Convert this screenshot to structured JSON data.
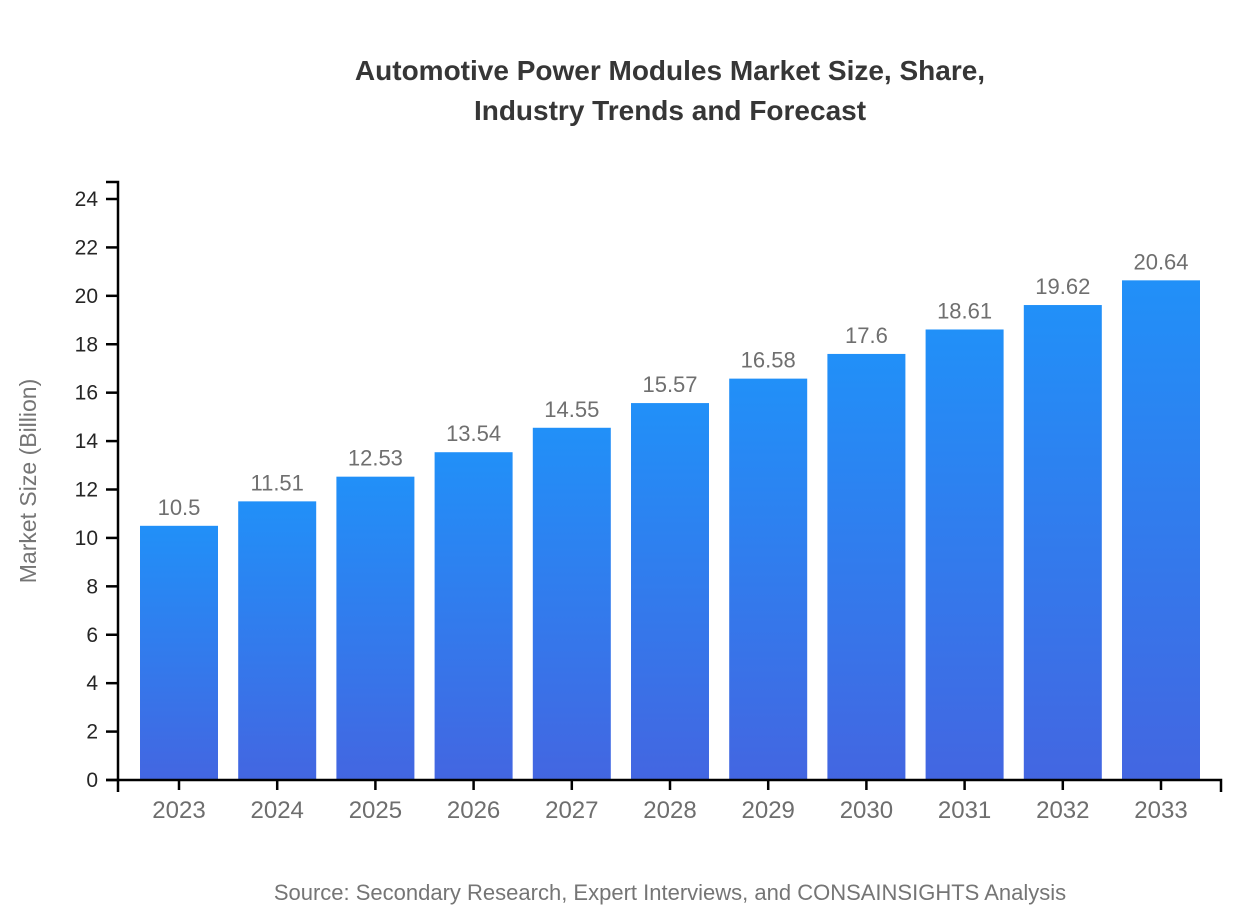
{
  "chart": {
    "title_line1": "Automotive Power Modules Market Size, Share,",
    "title_line2": "Industry Trends and Forecast",
    "ylabel": "Market Size (Billion)",
    "source": "Source: Secondary Research, Expert Interviews, and CONSAINSIGHTS Analysis"
  },
  "chart_data": {
    "type": "bar",
    "title": "Automotive Power Modules Market Size, Share, Industry Trends and Forecast",
    "categories": [
      "2023",
      "2024",
      "2025",
      "2026",
      "2027",
      "2028",
      "2029",
      "2030",
      "2031",
      "2032",
      "2033"
    ],
    "values": [
      10.5,
      11.51,
      12.53,
      13.54,
      14.55,
      15.57,
      16.58,
      17.6,
      18.61,
      19.62,
      20.64
    ],
    "value_labels": [
      "10.5",
      "11.51",
      "12.53",
      "13.54",
      "14.55",
      "15.57",
      "16.58",
      "17.6",
      "18.61",
      "19.62",
      "20.64"
    ],
    "xlabel": "",
    "ylabel": "Market Size (Billion)",
    "ylim": [
      0,
      24.7
    ],
    "yticks": [
      0,
      2,
      4,
      6,
      8,
      10,
      12,
      14,
      16,
      18,
      20,
      22,
      24
    ],
    "grid": false,
    "legend": false,
    "colors": {
      "bar_gradient_top": "#2190F8",
      "bar_gradient_bottom": "#4366E1",
      "axis": "#000000",
      "title": "#363636",
      "ytick_label": "#262626",
      "xtick_label": "#6e6e6e",
      "value_label": "#6f6f6f",
      "muted_text": "#757575"
    }
  }
}
